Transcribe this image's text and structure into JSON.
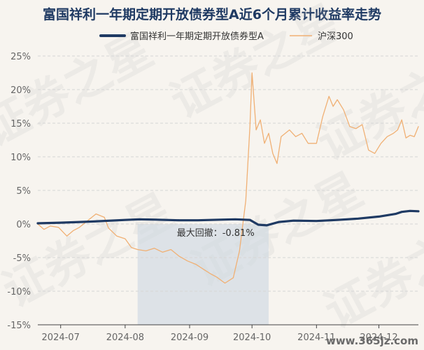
{
  "chart_data": {
    "type": "line",
    "title": "富国祥利一年期定期开放债券型A近6个月累计收益率走势",
    "xlabel": "",
    "ylabel": "",
    "y_unit": "%",
    "ylim": [
      -15,
      25
    ],
    "y_ticks": [
      25,
      20,
      15,
      10,
      5,
      0,
      -5,
      -10,
      -15
    ],
    "y_tick_labels": [
      "25%",
      "20%",
      "15%",
      "10%",
      "5%",
      "0%",
      "-5%",
      "-10%",
      "-15%"
    ],
    "x_range": [
      "2024-06-20",
      "2024-12-20"
    ],
    "x_ticks": [
      "2024-07-01",
      "2024-08-01",
      "2024-09-01",
      "2024-10-01",
      "2024-11-01",
      "2024-12-01"
    ],
    "x_tick_labels": [
      "2024-07",
      "2024-08",
      "2024-09",
      "2024-10",
      "2024-11",
      "2024-12"
    ],
    "grid": "horizontal dashed",
    "legend_position": "top-center",
    "series": [
      {
        "name": "富国祥利一年期定期开放债券型A",
        "color": "#1f3a63",
        "points": [
          [
            "2024-06-20",
            0.1
          ],
          [
            "2024-07-01",
            0.2
          ],
          [
            "2024-07-15",
            0.35
          ],
          [
            "2024-08-01",
            0.6
          ],
          [
            "2024-08-08",
            0.7
          ],
          [
            "2024-08-16",
            0.65
          ],
          [
            "2024-08-27",
            0.55
          ],
          [
            "2024-09-05",
            0.55
          ],
          [
            "2024-09-16",
            0.65
          ],
          [
            "2024-09-23",
            0.7
          ],
          [
            "2024-09-30",
            0.6
          ],
          [
            "2024-10-04",
            -0.1
          ],
          [
            "2024-10-08",
            -0.2
          ],
          [
            "2024-10-14",
            0.3
          ],
          [
            "2024-10-21",
            0.5
          ],
          [
            "2024-11-01",
            0.45
          ],
          [
            "2024-11-11",
            0.6
          ],
          [
            "2024-11-21",
            0.8
          ],
          [
            "2024-12-01",
            1.1
          ],
          [
            "2024-12-09",
            1.5
          ],
          [
            "2024-12-12",
            1.8
          ],
          [
            "2024-12-16",
            1.95
          ],
          [
            "2024-12-20",
            1.9
          ]
        ]
      },
      {
        "name": "沪深300",
        "color": "#f0b074",
        "points": [
          [
            "2024-06-20",
            0.0
          ],
          [
            "2024-06-23",
            -0.8
          ],
          [
            "2024-06-26",
            -0.3
          ],
          [
            "2024-06-30",
            -0.5
          ],
          [
            "2024-07-04",
            -1.8
          ],
          [
            "2024-07-07",
            -1.0
          ],
          [
            "2024-07-10",
            -0.5
          ],
          [
            "2024-07-14",
            0.5
          ],
          [
            "2024-07-18",
            1.5
          ],
          [
            "2024-07-22",
            1.0
          ],
          [
            "2024-07-24",
            -0.6
          ],
          [
            "2024-07-28",
            -1.8
          ],
          [
            "2024-08-01",
            -2.2
          ],
          [
            "2024-08-04",
            -3.5
          ],
          [
            "2024-08-07",
            -3.8
          ],
          [
            "2024-08-11",
            -4.0
          ],
          [
            "2024-08-15",
            -3.6
          ],
          [
            "2024-08-19",
            -4.2
          ],
          [
            "2024-08-23",
            -3.8
          ],
          [
            "2024-08-27",
            -4.8
          ],
          [
            "2024-08-31",
            -5.5
          ],
          [
            "2024-09-04",
            -6.0
          ],
          [
            "2024-09-08",
            -6.8
          ],
          [
            "2024-09-11",
            -7.4
          ],
          [
            "2024-09-14",
            -7.9
          ],
          [
            "2024-09-18",
            -8.8
          ],
          [
            "2024-09-22",
            -8.0
          ],
          [
            "2024-09-25",
            -4.0
          ],
          [
            "2024-09-28",
            3.5
          ],
          [
            "2024-09-30",
            14.5
          ],
          [
            "2024-10-01",
            22.5
          ],
          [
            "2024-10-03",
            14.0
          ],
          [
            "2024-10-05",
            15.5
          ],
          [
            "2024-10-07",
            12.0
          ],
          [
            "2024-10-09",
            13.5
          ],
          [
            "2024-10-11",
            10.5
          ],
          [
            "2024-10-13",
            9.0
          ],
          [
            "2024-10-15",
            13.0
          ],
          [
            "2024-10-19",
            14.0
          ],
          [
            "2024-10-22",
            13.0
          ],
          [
            "2024-10-25",
            13.5
          ],
          [
            "2024-10-28",
            12.0
          ],
          [
            "2024-11-01",
            12.0
          ],
          [
            "2024-11-04",
            16.0
          ],
          [
            "2024-11-07",
            19.0
          ],
          [
            "2024-11-09",
            17.5
          ],
          [
            "2024-11-11",
            18.5
          ],
          [
            "2024-11-14",
            17.0
          ],
          [
            "2024-11-17",
            14.5
          ],
          [
            "2024-11-20",
            14.2
          ],
          [
            "2024-11-23",
            14.8
          ],
          [
            "2024-11-26",
            11.0
          ],
          [
            "2024-11-29",
            10.5
          ],
          [
            "2024-12-02",
            12.0
          ],
          [
            "2024-12-05",
            13.0
          ],
          [
            "2024-12-08",
            13.5
          ],
          [
            "2024-12-10",
            14.0
          ],
          [
            "2024-12-12",
            15.5
          ],
          [
            "2024-12-14",
            12.8
          ],
          [
            "2024-12-16",
            13.2
          ],
          [
            "2024-12-18",
            13.0
          ],
          [
            "2024-12-20",
            14.5
          ]
        ]
      }
    ],
    "annotations": [
      {
        "type": "shaded-region",
        "label": "最大回撤：-0.81%",
        "x_start": "2024-08-07",
        "x_end": "2024-10-09"
      }
    ]
  },
  "watermark": "证券之星",
  "site_mark": "www.365jz.com"
}
